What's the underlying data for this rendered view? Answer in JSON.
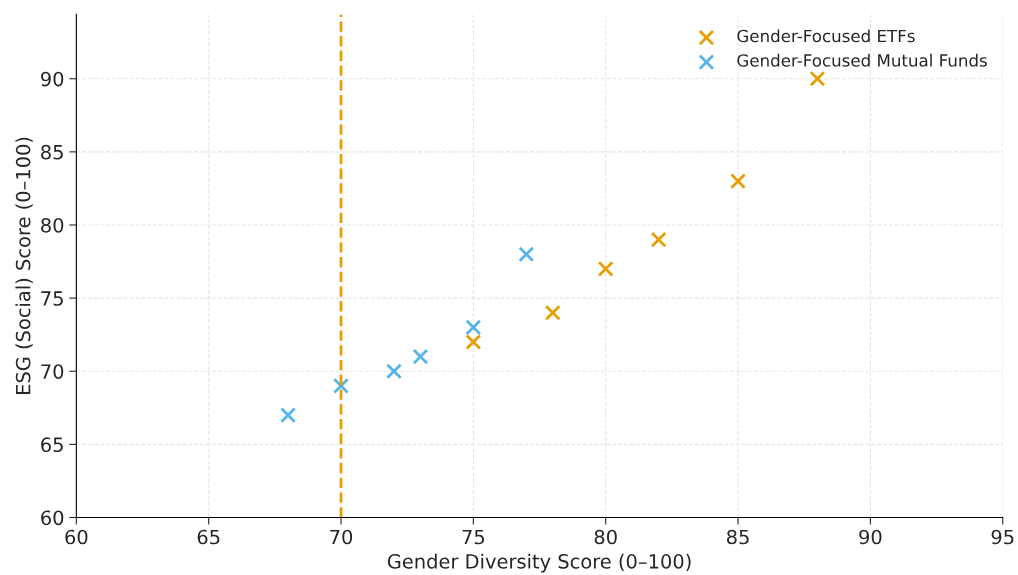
{
  "chart_data": {
    "type": "scatter",
    "xlabel": "Gender Diversity Score (0–100)",
    "ylabel": "ESG (Social) Score (0–100)",
    "series": [
      {
        "name": "Gender-Focused ETFs",
        "color": "#e69f00",
        "x": [
          75,
          78,
          80,
          82,
          85,
          88
        ],
        "values": [
          72,
          74,
          77,
          79,
          83,
          90
        ]
      },
      {
        "name": "Gender-Focused Mutual Funds",
        "color": "#56b4e9",
        "x": [
          68,
          70,
          72,
          73,
          75,
          77
        ],
        "values": [
          67,
          69,
          70,
          71,
          73,
          78
        ]
      }
    ],
    "marker": "cross",
    "xlim": [
      60,
      95
    ],
    "ylim": [
      60,
      94.4
    ],
    "xticks": [
      60,
      65,
      70,
      75,
      80,
      85,
      90,
      95
    ],
    "yticks": [
      60,
      65,
      70,
      75,
      80,
      85,
      90
    ],
    "ref_lines": [
      {
        "axis": "x",
        "value": 70,
        "color": "#e69f00",
        "line_style": "dashed"
      }
    ],
    "grid": true,
    "legend": "top right"
  }
}
